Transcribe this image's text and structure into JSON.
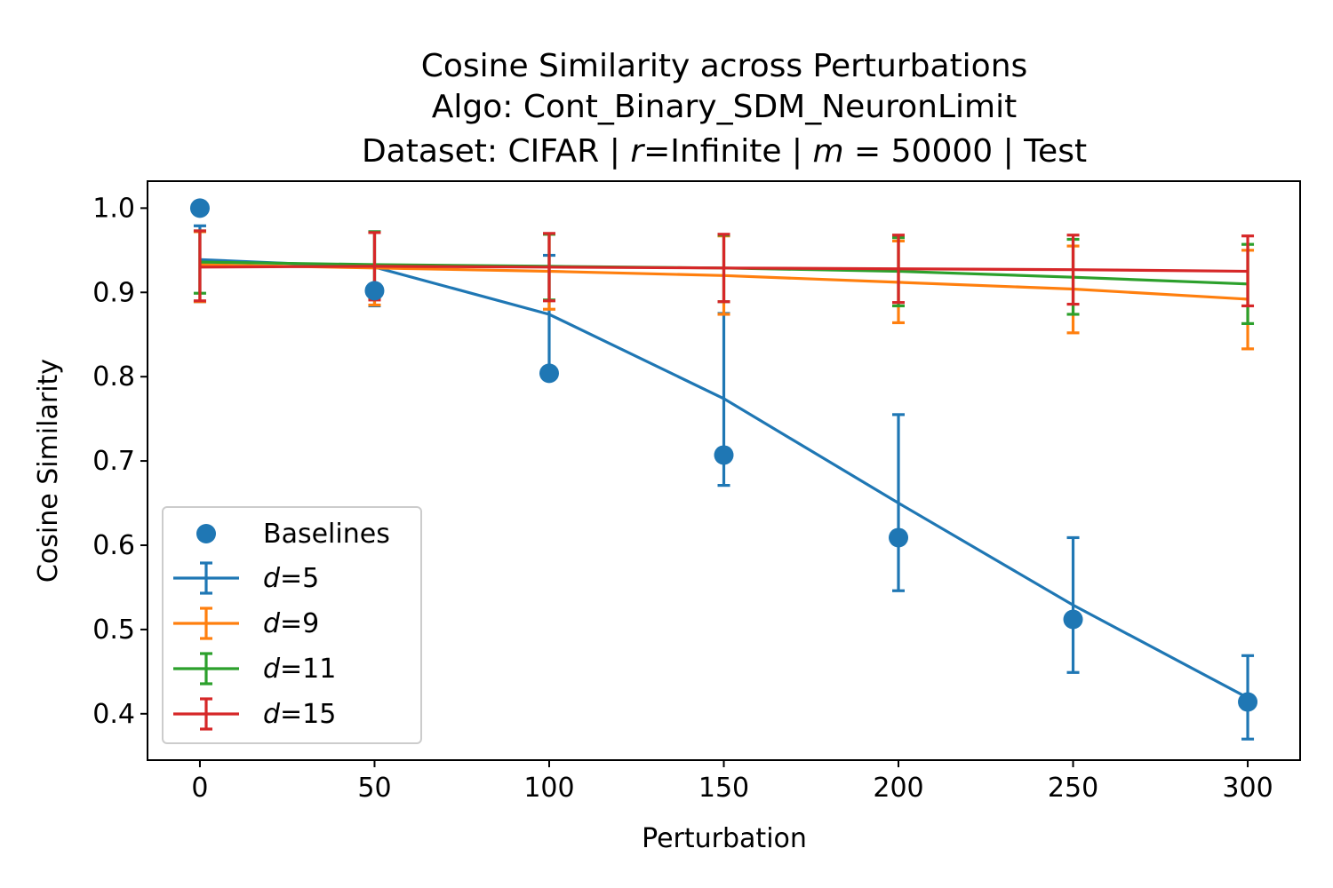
{
  "chart_data": {
    "type": "line",
    "title": {
      "line1": "Cosine Similarity across Perturbations",
      "line2": "Algo: Cont_Binary_SDM_NeuronLimit",
      "line3_parts": [
        "Dataset: CIFAR | ",
        "r",
        "=Infinite | ",
        "m",
        " = 50000 | Test"
      ]
    },
    "xlabel": "Perturbation",
    "ylabel": "Cosine Similarity",
    "xlim": [
      -15,
      315
    ],
    "ylim": [
      0.345,
      1.032
    ],
    "x_ticks": [
      0,
      50,
      100,
      150,
      200,
      250,
      300
    ],
    "y_ticks": [
      0.4,
      0.5,
      0.6,
      0.7,
      0.8,
      0.9,
      1.0
    ],
    "x": [
      0,
      50,
      100,
      150,
      200,
      250,
      300
    ],
    "grid": false,
    "legend_position": "lower-left",
    "baselines": {
      "name": "Baselines",
      "color": "#1f77b4",
      "values": [
        1.0,
        0.902,
        0.804,
        0.707,
        0.609,
        0.512,
        0.414
      ]
    },
    "series": [
      {
        "name": "d=5",
        "prefix": "d",
        "suffix": "=5",
        "color": "#1f77b4",
        "values": [
          0.939,
          0.93,
          0.874,
          0.774,
          0.65,
          0.529,
          0.419
        ],
        "err_low": [
          0.889,
          0.884,
          0.803,
          0.671,
          0.546,
          0.449,
          0.37
        ],
        "err_high": [
          0.979,
          0.972,
          0.944,
          0.875,
          0.755,
          0.609,
          0.469
        ]
      },
      {
        "name": "d=9",
        "prefix": "d",
        "suffix": "=9",
        "color": "#ff7f0e",
        "values": [
          0.933,
          0.929,
          0.925,
          0.92,
          0.912,
          0.904,
          0.892
        ],
        "err_low": [
          0.889,
          0.885,
          0.88,
          0.874,
          0.864,
          0.852,
          0.833
        ],
        "err_high": [
          0.972,
          0.971,
          0.969,
          0.967,
          0.961,
          0.955,
          0.95
        ]
      },
      {
        "name": "d=11",
        "prefix": "d",
        "suffix": "=11",
        "color": "#2ca02c",
        "values": [
          0.936,
          0.933,
          0.931,
          0.929,
          0.925,
          0.918,
          0.91
        ],
        "err_low": [
          0.899,
          0.893,
          0.891,
          0.889,
          0.884,
          0.874,
          0.863
        ],
        "err_high": [
          0.973,
          0.972,
          0.969,
          0.968,
          0.965,
          0.963,
          0.957
        ]
      },
      {
        "name": "d=15",
        "prefix": "d",
        "suffix": "=15",
        "color": "#d62728",
        "values": [
          0.93,
          0.931,
          0.93,
          0.929,
          0.928,
          0.927,
          0.925
        ],
        "err_low": [
          0.89,
          0.891,
          0.89,
          0.889,
          0.888,
          0.886,
          0.884
        ],
        "err_high": [
          0.973,
          0.971,
          0.97,
          0.969,
          0.968,
          0.968,
          0.967
        ]
      }
    ]
  }
}
